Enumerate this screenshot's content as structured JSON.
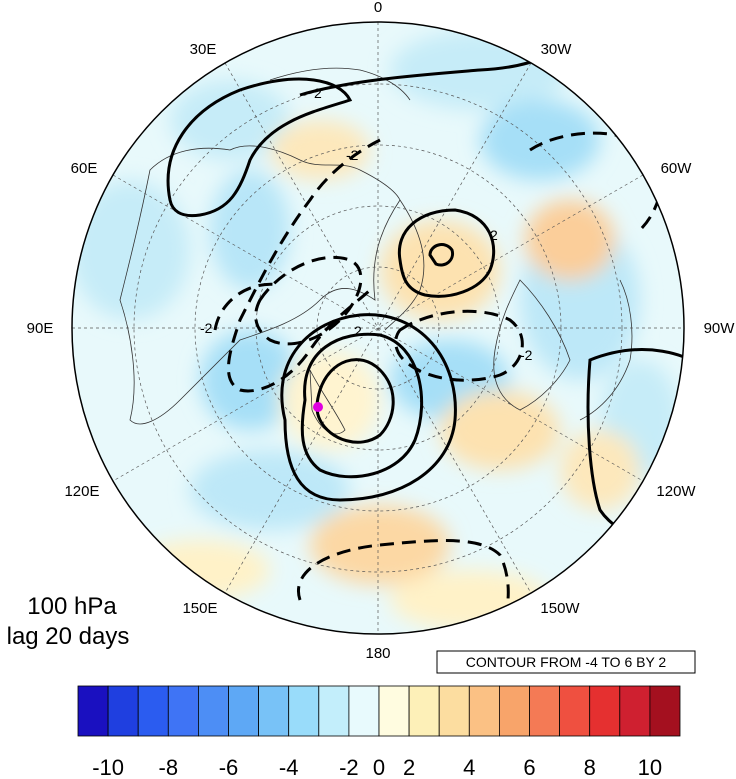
{
  "map": {
    "projection": "polar stereographic, north pole",
    "level_label": "100 hPa",
    "lag_label": "lag 20 days",
    "contour_info": "CONTOUR FROM -4 TO 6 BY 2",
    "longitude_labels": [
      "0",
      "30W",
      "60W",
      "90W",
      "120W",
      "150W",
      "180",
      "150E",
      "120E",
      "90E",
      "60E",
      "30E"
    ],
    "contour_labels": [
      "2",
      "-2"
    ],
    "marker_color": "#e000e0"
  },
  "colorbar": {
    "tick_labels": [
      "-10",
      "-8",
      "-6",
      "-4",
      "-2",
      "0",
      "2",
      "4",
      "6",
      "8",
      "10"
    ],
    "colors": [
      "#1a10c0",
      "#1f3fe0",
      "#2b5cf0",
      "#3f74f5",
      "#4d8ef5",
      "#5ea8f5",
      "#78c2f7",
      "#99dcfa",
      "#c3eefb",
      "#e8fafd",
      "#fffce0",
      "#fdf0b8",
      "#fcdda0",
      "#fbc184",
      "#f8a46a",
      "#f47a55",
      "#ef5040",
      "#e53030",
      "#cf2030",
      "#a4101f"
    ]
  }
}
